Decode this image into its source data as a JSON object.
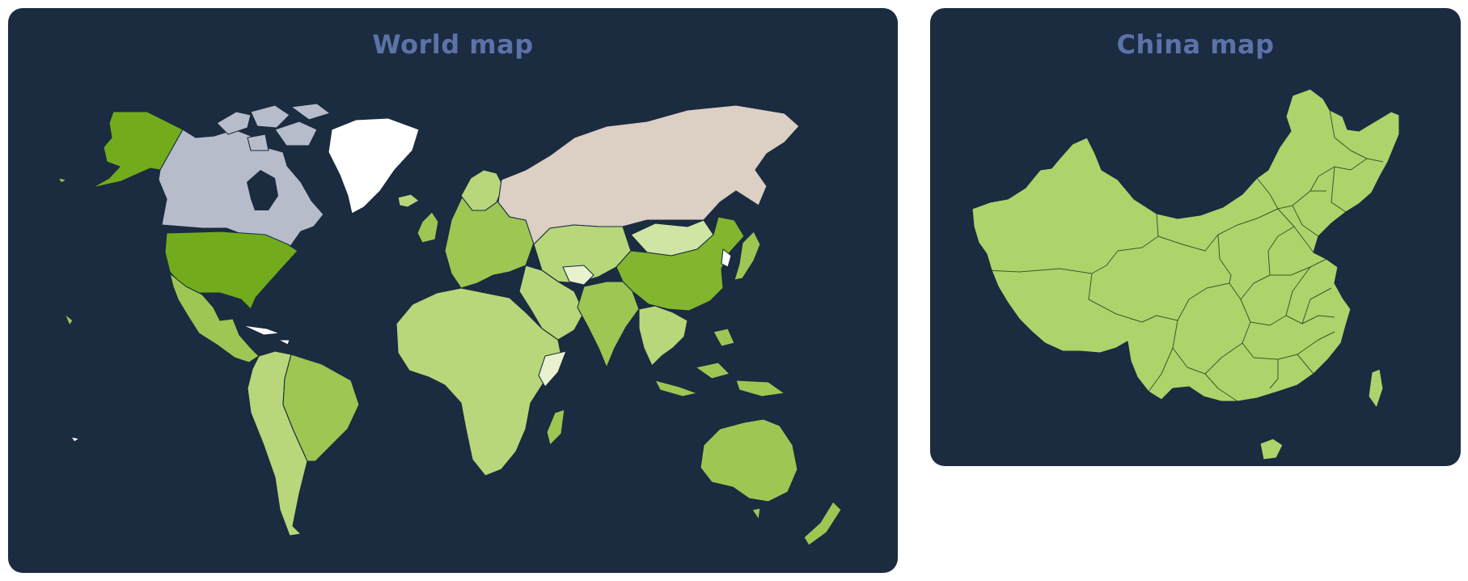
{
  "world_map": {
    "title": "World map"
  },
  "china_map": {
    "title": "China map"
  },
  "colors": {
    "panel_bg": "#1b2b40",
    "title": "#5c72a8",
    "usa_alaska": "#72ac1c",
    "china": "#83b62e",
    "green_mid": "#9ec653",
    "green_light": "#b7d77a",
    "green_pale": "#cfe5a4",
    "canada": "#b7bccb",
    "russia": "#dccfc3",
    "greenland": "#ffffff",
    "china_provinces": "#acd46b"
  }
}
